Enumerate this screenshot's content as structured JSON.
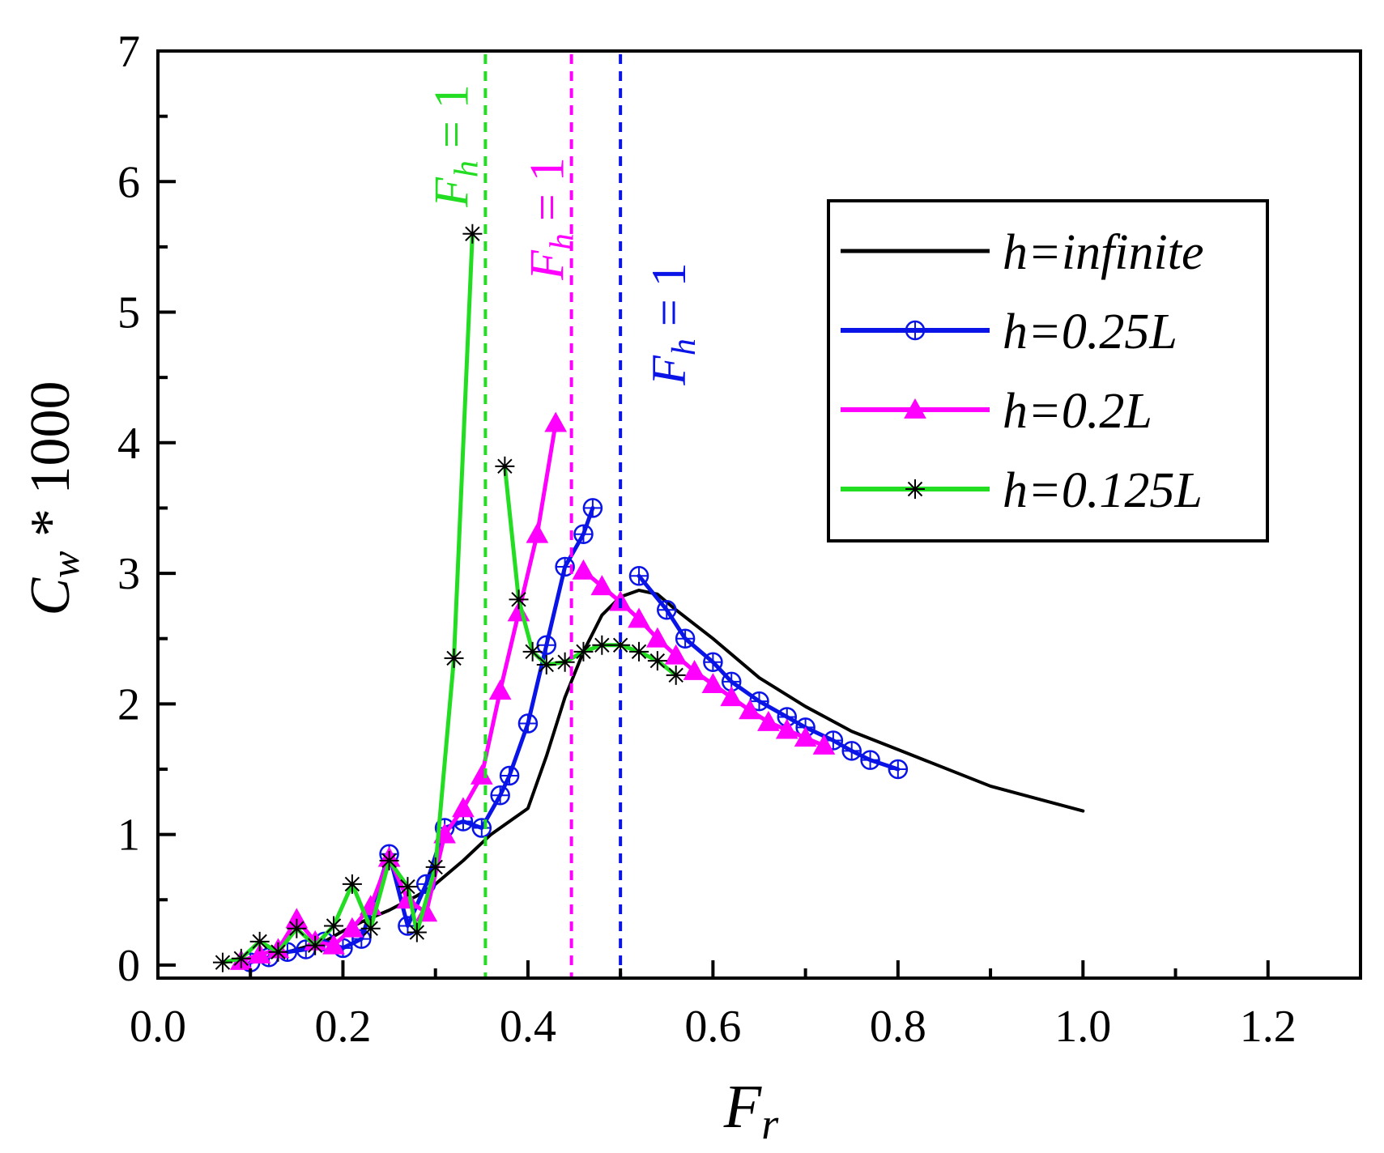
{
  "chart_data": {
    "type": "line",
    "title": "",
    "xlabel": "F_r",
    "ylabel": "C_w * 1000",
    "xlim": [
      0.0,
      1.3
    ],
    "ylim": [
      -0.1,
      7.0
    ],
    "xticks": [
      0.0,
      0.2,
      0.4,
      0.6,
      0.8,
      1.0,
      1.2
    ],
    "xtick_labels": [
      "0.0",
      "0.2",
      "0.4",
      "0.6",
      "0.8",
      "1.0",
      "1.2"
    ],
    "yticks": [
      0,
      1,
      2,
      3,
      4,
      5,
      6,
      7
    ],
    "ytick_labels": [
      "0",
      "1",
      "2",
      "3",
      "4",
      "5",
      "6",
      "7"
    ],
    "legend_position": "top-right",
    "grid": false,
    "series": [
      {
        "name": "h=infinite",
        "color": "#000000",
        "marker": "none",
        "x": [
          0.1,
          0.14,
          0.18,
          0.2,
          0.22,
          0.25,
          0.28,
          0.3,
          0.33,
          0.36,
          0.38,
          0.4,
          0.42,
          0.44,
          0.46,
          0.48,
          0.5,
          0.52,
          0.54,
          0.56,
          0.6,
          0.65,
          0.7,
          0.75,
          0.8,
          0.9,
          1.0
        ],
        "values": [
          0.02,
          0.1,
          0.18,
          0.26,
          0.33,
          0.42,
          0.53,
          0.62,
          0.8,
          1.0,
          1.1,
          1.2,
          1.6,
          2.05,
          2.4,
          2.68,
          2.82,
          2.87,
          2.84,
          2.72,
          2.5,
          2.2,
          1.98,
          1.79,
          1.65,
          1.37,
          1.18
        ]
      },
      {
        "name": "h=0.25L",
        "color": "#0a14e6",
        "marker": "circle-plus",
        "segments": [
          {
            "x": [
              0.1,
              0.12,
              0.14,
              0.16,
              0.18,
              0.2,
              0.22,
              0.25,
              0.27,
              0.29,
              0.31,
              0.33,
              0.35,
              0.37,
              0.38,
              0.4,
              0.42,
              0.44,
              0.46,
              0.47
            ],
            "values": [
              0.02,
              0.06,
              0.1,
              0.12,
              0.18,
              0.13,
              0.2,
              0.85,
              0.3,
              0.62,
              1.05,
              1.1,
              1.05,
              1.3,
              1.45,
              1.85,
              2.45,
              3.05,
              3.3,
              3.5
            ]
          },
          {
            "x": [
              0.52,
              0.55,
              0.57,
              0.6,
              0.62,
              0.65,
              0.68,
              0.7,
              0.73,
              0.75,
              0.77,
              0.8
            ],
            "values": [
              2.98,
              2.72,
              2.5,
              2.32,
              2.17,
              2.02,
              1.9,
              1.82,
              1.72,
              1.64,
              1.57,
              1.5
            ]
          }
        ]
      },
      {
        "name": "h=0.2L",
        "color": "#ff00ff",
        "marker": "triangle",
        "segments": [
          {
            "x": [
              0.09,
              0.11,
              0.13,
              0.15,
              0.17,
              0.19,
              0.21,
              0.23,
              0.25,
              0.27,
              0.29,
              0.31,
              0.33,
              0.35,
              0.37,
              0.39,
              0.41,
              0.43
            ],
            "values": [
              0.03,
              0.08,
              0.12,
              0.35,
              0.18,
              0.15,
              0.28,
              0.45,
              0.82,
              0.5,
              0.4,
              1.0,
              1.2,
              1.45,
              2.1,
              2.7,
              3.3,
              4.15
            ]
          },
          {
            "x": [
              0.46,
              0.48,
              0.5,
              0.52,
              0.54,
              0.56,
              0.58,
              0.6,
              0.62,
              0.64,
              0.66,
              0.68,
              0.7,
              0.72
            ],
            "values": [
              3.02,
              2.9,
              2.78,
              2.65,
              2.5,
              2.37,
              2.25,
              2.15,
              2.05,
              1.95,
              1.86,
              1.8,
              1.74,
              1.68
            ]
          }
        ]
      },
      {
        "name": "h=0.125L",
        "color": "#22dd22",
        "marker": "asterisk",
        "segments": [
          {
            "x": [
              0.07,
              0.09,
              0.11,
              0.13,
              0.15,
              0.17,
              0.19,
              0.21,
              0.23,
              0.25,
              0.27,
              0.28,
              0.3,
              0.32,
              0.34
            ],
            "values": [
              0.02,
              0.05,
              0.18,
              0.1,
              0.28,
              0.15,
              0.3,
              0.62,
              0.28,
              0.8,
              0.6,
              0.25,
              0.75,
              2.35,
              5.6
            ]
          },
          {
            "x": [
              0.375,
              0.39,
              0.405,
              0.42,
              0.44,
              0.46,
              0.48,
              0.5,
              0.52,
              0.54,
              0.56
            ],
            "values": [
              3.82,
              2.8,
              2.4,
              2.3,
              2.32,
              2.4,
              2.45,
              2.45,
              2.4,
              2.33,
              2.22
            ]
          }
        ]
      }
    ],
    "vertical_lines": [
      {
        "x": 0.354,
        "color": "#22dd22",
        "label": "F_h = 1"
      },
      {
        "x": 0.447,
        "color": "#ff00ff",
        "label": "F_h = 1"
      },
      {
        "x": 0.5,
        "color": "#0a14e6",
        "label": "F_h = 1"
      }
    ]
  },
  "labels": {
    "xlabel_main": "F",
    "xlabel_sub": "r",
    "ylabel_main": "C",
    "ylabel_sub": "w",
    "ylabel_rest": " * 1000",
    "fh_main": "F",
    "fh_sub": "h",
    "fh_rest": " = 1"
  }
}
